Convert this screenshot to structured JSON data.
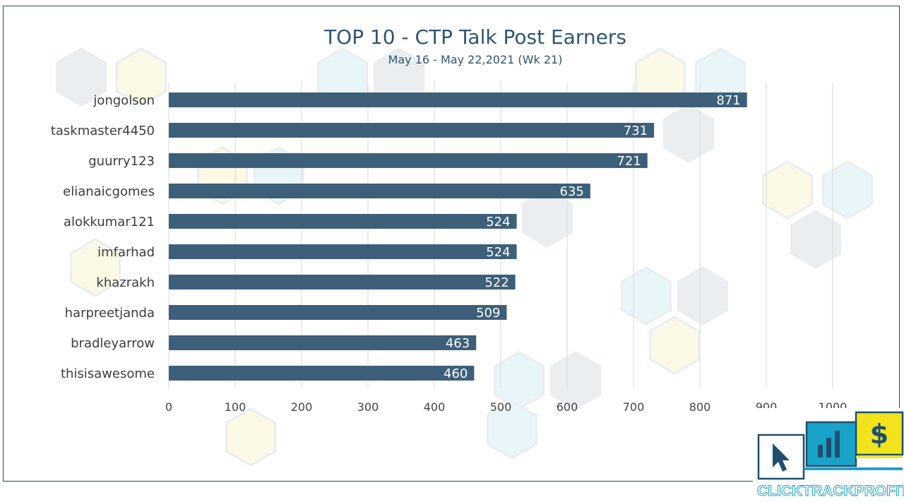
{
  "chart_data": {
    "type": "bar",
    "orientation": "horizontal",
    "title": "TOP 10 - CTP Talk Post Earners",
    "subtitle": "May 16 - May 22,2021 (Wk 21)",
    "categories": [
      "jongolson",
      "taskmaster4450",
      "guurry123",
      "elianaicgomes",
      "alokkumar121",
      "imfarhad",
      "khazrakh",
      "harpreetjanda",
      "bradleyarrow",
      "thisisawesome"
    ],
    "values": [
      871,
      731,
      721,
      635,
      524,
      524,
      522,
      509,
      463,
      460
    ],
    "xlim": [
      0,
      1000
    ],
    "xticks": [
      0,
      100,
      200,
      300,
      400,
      500,
      600,
      700,
      800,
      900,
      1000
    ],
    "xlabel": "",
    "ylabel": "",
    "grid": "vertical",
    "bar_color": "#3e5f7a",
    "label_color": "#ffffff"
  },
  "logo": {
    "text_a": "CLICK",
    "text_b": "TRACK",
    "text_c": "PROFIT",
    "dollar": "$",
    "colors": {
      "navy": "#1f4e6e",
      "teal": "#1aa3c9",
      "yellow": "#f2e41c"
    }
  }
}
